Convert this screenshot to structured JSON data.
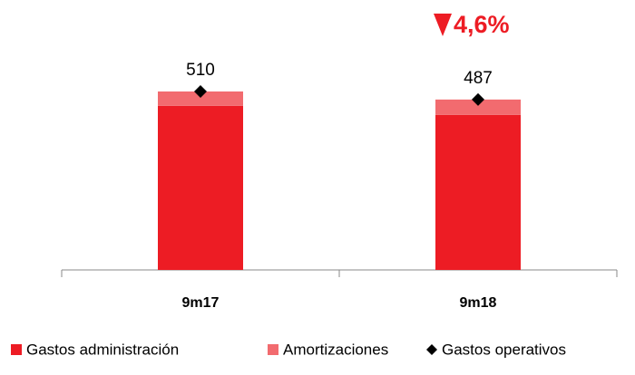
{
  "chart_data": {
    "type": "bar",
    "stacked": true,
    "annotation": "4,6%",
    "categories": [
      "9m17",
      "9m18"
    ],
    "series": [
      {
        "name": "Gastos administración",
        "color": "#ed1c24",
        "values": [
          469,
          443
        ]
      },
      {
        "name": "Amortizaciones",
        "color": "#f26b6f",
        "values": [
          41,
          44
        ]
      },
      {
        "name": "Gastos operativos",
        "color": "#000000",
        "marker": "diamond",
        "values": [
          510,
          487
        ]
      }
    ]
  }
}
